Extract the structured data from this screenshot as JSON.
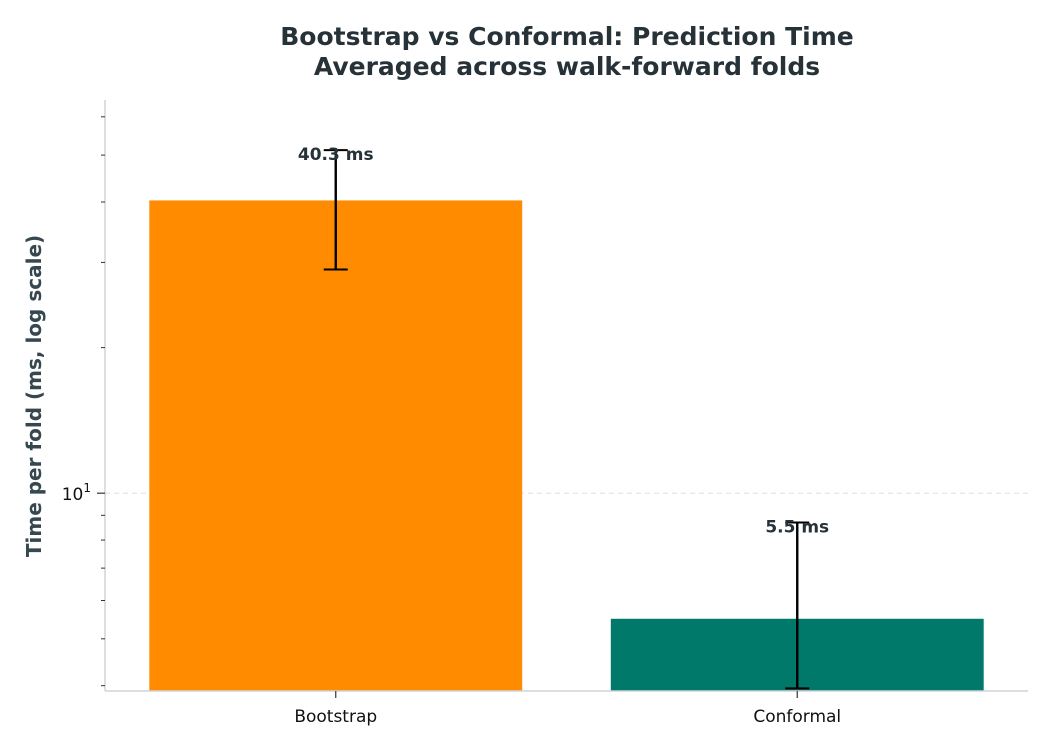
{
  "chart_data": {
    "type": "bar",
    "title": "Bootstrap vs Conformal: Prediction Time",
    "subtitle": "Averaged across walk-forward folds",
    "xlabel": "",
    "ylabel": "Time per fold (ms, log scale)",
    "yscale": "log",
    "ylim": [
      3.9,
      65
    ],
    "ytick_label_base": "10",
    "ytick_label_exp": "1",
    "grid": "y-dashed",
    "categories": [
      "Bootstrap",
      "Conformal"
    ],
    "values": [
      40.3,
      5.5
    ],
    "error_low": [
      29.0,
      3.95
    ],
    "error_high": [
      51.2,
      8.7
    ],
    "data_labels": [
      "40.3 ms",
      "5.5 ms"
    ],
    "colors": [
      "#ff8c00",
      "#00796b"
    ]
  }
}
